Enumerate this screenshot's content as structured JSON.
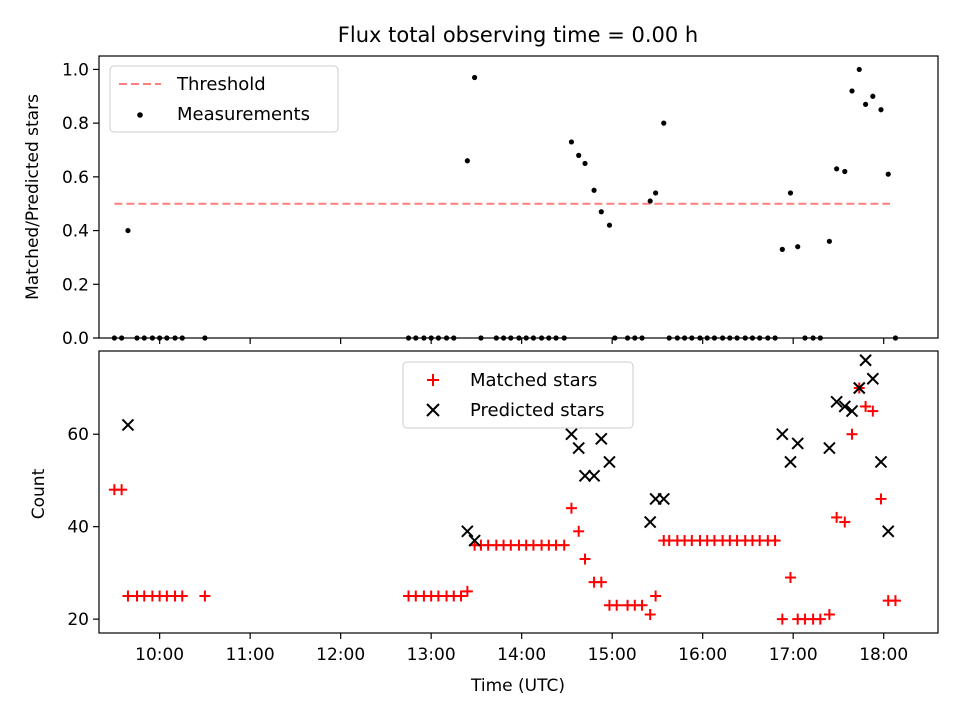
{
  "chart_data": [
    {
      "type": "scatter",
      "panel": "top",
      "title": "Flux total observing time = 0.00 h",
      "xlabel": "",
      "ylabel": "Matched/Predicted stars",
      "xlim": [
        9.33,
        18.6
      ],
      "ylim": [
        0,
        1.05
      ],
      "yticks": [
        0.0,
        0.2,
        0.4,
        0.6,
        0.8,
        1.0
      ],
      "ytick_labels": [
        "0.0",
        "0.2",
        "0.4",
        "0.6",
        "0.8",
        "1.0"
      ],
      "legend_position": "upper-left",
      "series": [
        {
          "name": "Threshold",
          "style": "dashed-line",
          "color": "#ff7f7f",
          "x": [
            9.5,
            18.07
          ],
          "y": [
            0.5,
            0.5
          ]
        },
        {
          "name": "Measurements",
          "style": "dot",
          "color": "#000000",
          "x": [
            9.5,
            9.58,
            9.65,
            9.75,
            9.83,
            9.92,
            10.0,
            10.08,
            10.17,
            10.25,
            10.5,
            12.75,
            12.83,
            12.92,
            13.0,
            13.08,
            13.17,
            13.25,
            13.4,
            13.48,
            13.55,
            13.72,
            13.8,
            13.88,
            13.97,
            14.05,
            14.13,
            14.22,
            14.3,
            14.38,
            14.47,
            14.55,
            14.63,
            14.7,
            14.8,
            14.88,
            14.97,
            15.03,
            15.17,
            15.25,
            15.33,
            15.42,
            15.48,
            15.57,
            15.63,
            15.72,
            15.8,
            15.88,
            15.97,
            16.05,
            16.13,
            16.22,
            16.3,
            16.38,
            16.47,
            16.55,
            16.63,
            16.72,
            16.8,
            16.88,
            16.97,
            17.05,
            17.13,
            17.22,
            17.3,
            17.4,
            17.48,
            17.57,
            17.65,
            17.73,
            17.8,
            17.88,
            17.97,
            18.05,
            18.13
          ],
          "y": [
            0,
            0,
            0.4,
            0,
            0,
            0,
            0,
            0,
            0,
            0,
            0,
            0,
            0,
            0,
            0,
            0,
            0,
            0,
            0.66,
            0.97,
            0,
            0,
            0,
            0,
            0,
            0,
            0,
            0,
            0,
            0,
            0,
            0.73,
            0.68,
            0.65,
            0.55,
            0.47,
            0.42,
            0,
            0,
            0,
            0,
            0.51,
            0.54,
            0.8,
            0,
            0,
            0,
            0,
            0,
            0,
            0,
            0,
            0,
            0,
            0,
            0,
            0,
            0,
            0,
            0.33,
            0.54,
            0.34,
            0,
            0,
            0,
            0.36,
            0.63,
            0.62,
            0.92,
            1.0,
            0.87,
            0.9,
            0.85,
            0.61,
            0
          ]
        }
      ]
    },
    {
      "type": "scatter",
      "panel": "bottom",
      "title": "",
      "xlabel": "Time (UTC)",
      "ylabel": "Count",
      "xlim": [
        9.33,
        18.6
      ],
      "ylim": [
        17,
        78
      ],
      "xticks": [
        10,
        11,
        12,
        13,
        14,
        15,
        16,
        17,
        18
      ],
      "xtick_labels": [
        "10:00",
        "11:00",
        "12:00",
        "13:00",
        "14:00",
        "15:00",
        "16:00",
        "17:00",
        "18:00"
      ],
      "yticks": [
        20,
        40,
        60
      ],
      "ytick_labels": [
        "20",
        "40",
        "60"
      ],
      "legend_position": "upper-center",
      "series": [
        {
          "name": "Matched stars",
          "marker": "plus",
          "color": "#ff0000",
          "x": [
            9.5,
            9.58,
            9.65,
            9.75,
            9.83,
            9.92,
            10.0,
            10.08,
            10.17,
            10.25,
            10.5,
            12.75,
            12.83,
            12.92,
            13.0,
            13.08,
            13.17,
            13.25,
            13.33,
            13.4,
            13.48,
            13.55,
            13.63,
            13.72,
            13.8,
            13.88,
            13.97,
            14.05,
            14.13,
            14.22,
            14.3,
            14.38,
            14.47,
            14.55,
            14.63,
            14.7,
            14.8,
            14.88,
            14.97,
            15.05,
            15.17,
            15.25,
            15.33,
            15.42,
            15.48,
            15.57,
            15.63,
            15.72,
            15.8,
            15.88,
            15.97,
            16.05,
            16.13,
            16.22,
            16.3,
            16.38,
            16.47,
            16.55,
            16.63,
            16.72,
            16.8,
            16.88,
            16.97,
            17.05,
            17.13,
            17.22,
            17.3,
            17.4,
            17.48,
            17.57,
            17.65,
            17.73,
            17.8,
            17.88,
            17.97,
            18.05,
            18.13
          ],
          "y": [
            48,
            48,
            25,
            25,
            25,
            25,
            25,
            25,
            25,
            25,
            25,
            25,
            25,
            25,
            25,
            25,
            25,
            25,
            25,
            26,
            36,
            36,
            36,
            36,
            36,
            36,
            36,
            36,
            36,
            36,
            36,
            36,
            36,
            44,
            39,
            33,
            28,
            28,
            23,
            23,
            23,
            23,
            23,
            21,
            25,
            37,
            37,
            37,
            37,
            37,
            37,
            37,
            37,
            37,
            37,
            37,
            37,
            37,
            37,
            37,
            37,
            20,
            29,
            20,
            20,
            20,
            20,
            21,
            42,
            41,
            60,
            70,
            66,
            65,
            46,
            24,
            24
          ]
        },
        {
          "name": "Predicted stars",
          "marker": "x",
          "color": "#000000",
          "x": [
            9.65,
            13.4,
            13.48,
            14.55,
            14.63,
            14.7,
            14.8,
            14.88,
            14.97,
            15.42,
            15.48,
            15.57,
            16.88,
            16.97,
            17.05,
            17.4,
            17.48,
            17.57,
            17.65,
            17.73,
            17.8,
            17.88,
            17.97,
            18.05
          ],
          "y": [
            62,
            39,
            37,
            60,
            57,
            51,
            51,
            59,
            54,
            41,
            46,
            46,
            60,
            54,
            58,
            57,
            67,
            66,
            65,
            70,
            76,
            72,
            54,
            39
          ]
        }
      ]
    }
  ]
}
